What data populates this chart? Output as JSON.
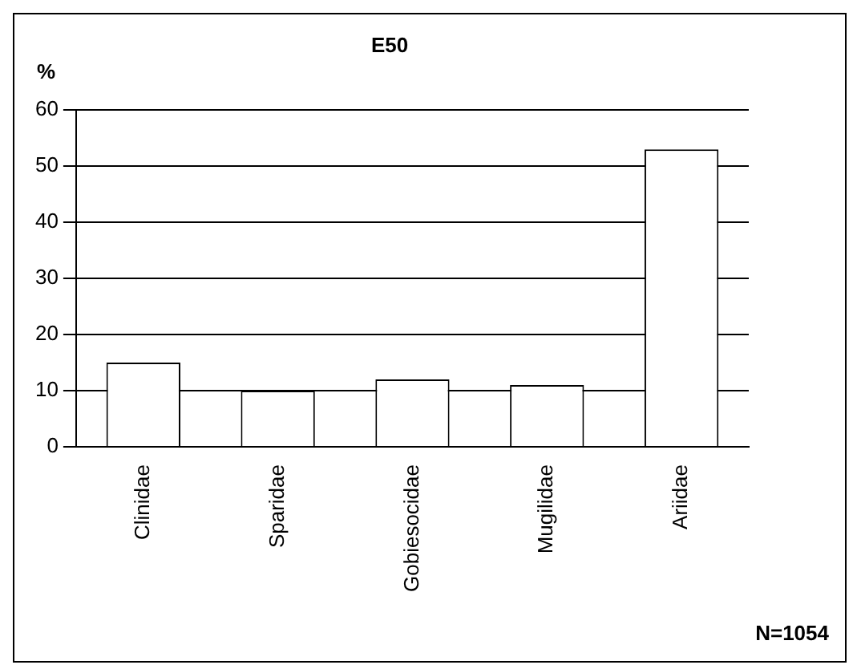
{
  "chart_data": {
    "type": "bar",
    "title": "E50",
    "ylabel": "%",
    "categories": [
      "Clinidae",
      "Sparidae",
      "Gobiesocidae",
      "Mugilidae",
      "Ariidae"
    ],
    "values": [
      15,
      10,
      12,
      11,
      53
    ],
    "color": "#ffffff",
    "ylim": [
      0,
      60
    ],
    "yticks": [
      0,
      10,
      20,
      30,
      40,
      50,
      60
    ],
    "grid": "y",
    "annotations": [
      "N=1054"
    ]
  }
}
